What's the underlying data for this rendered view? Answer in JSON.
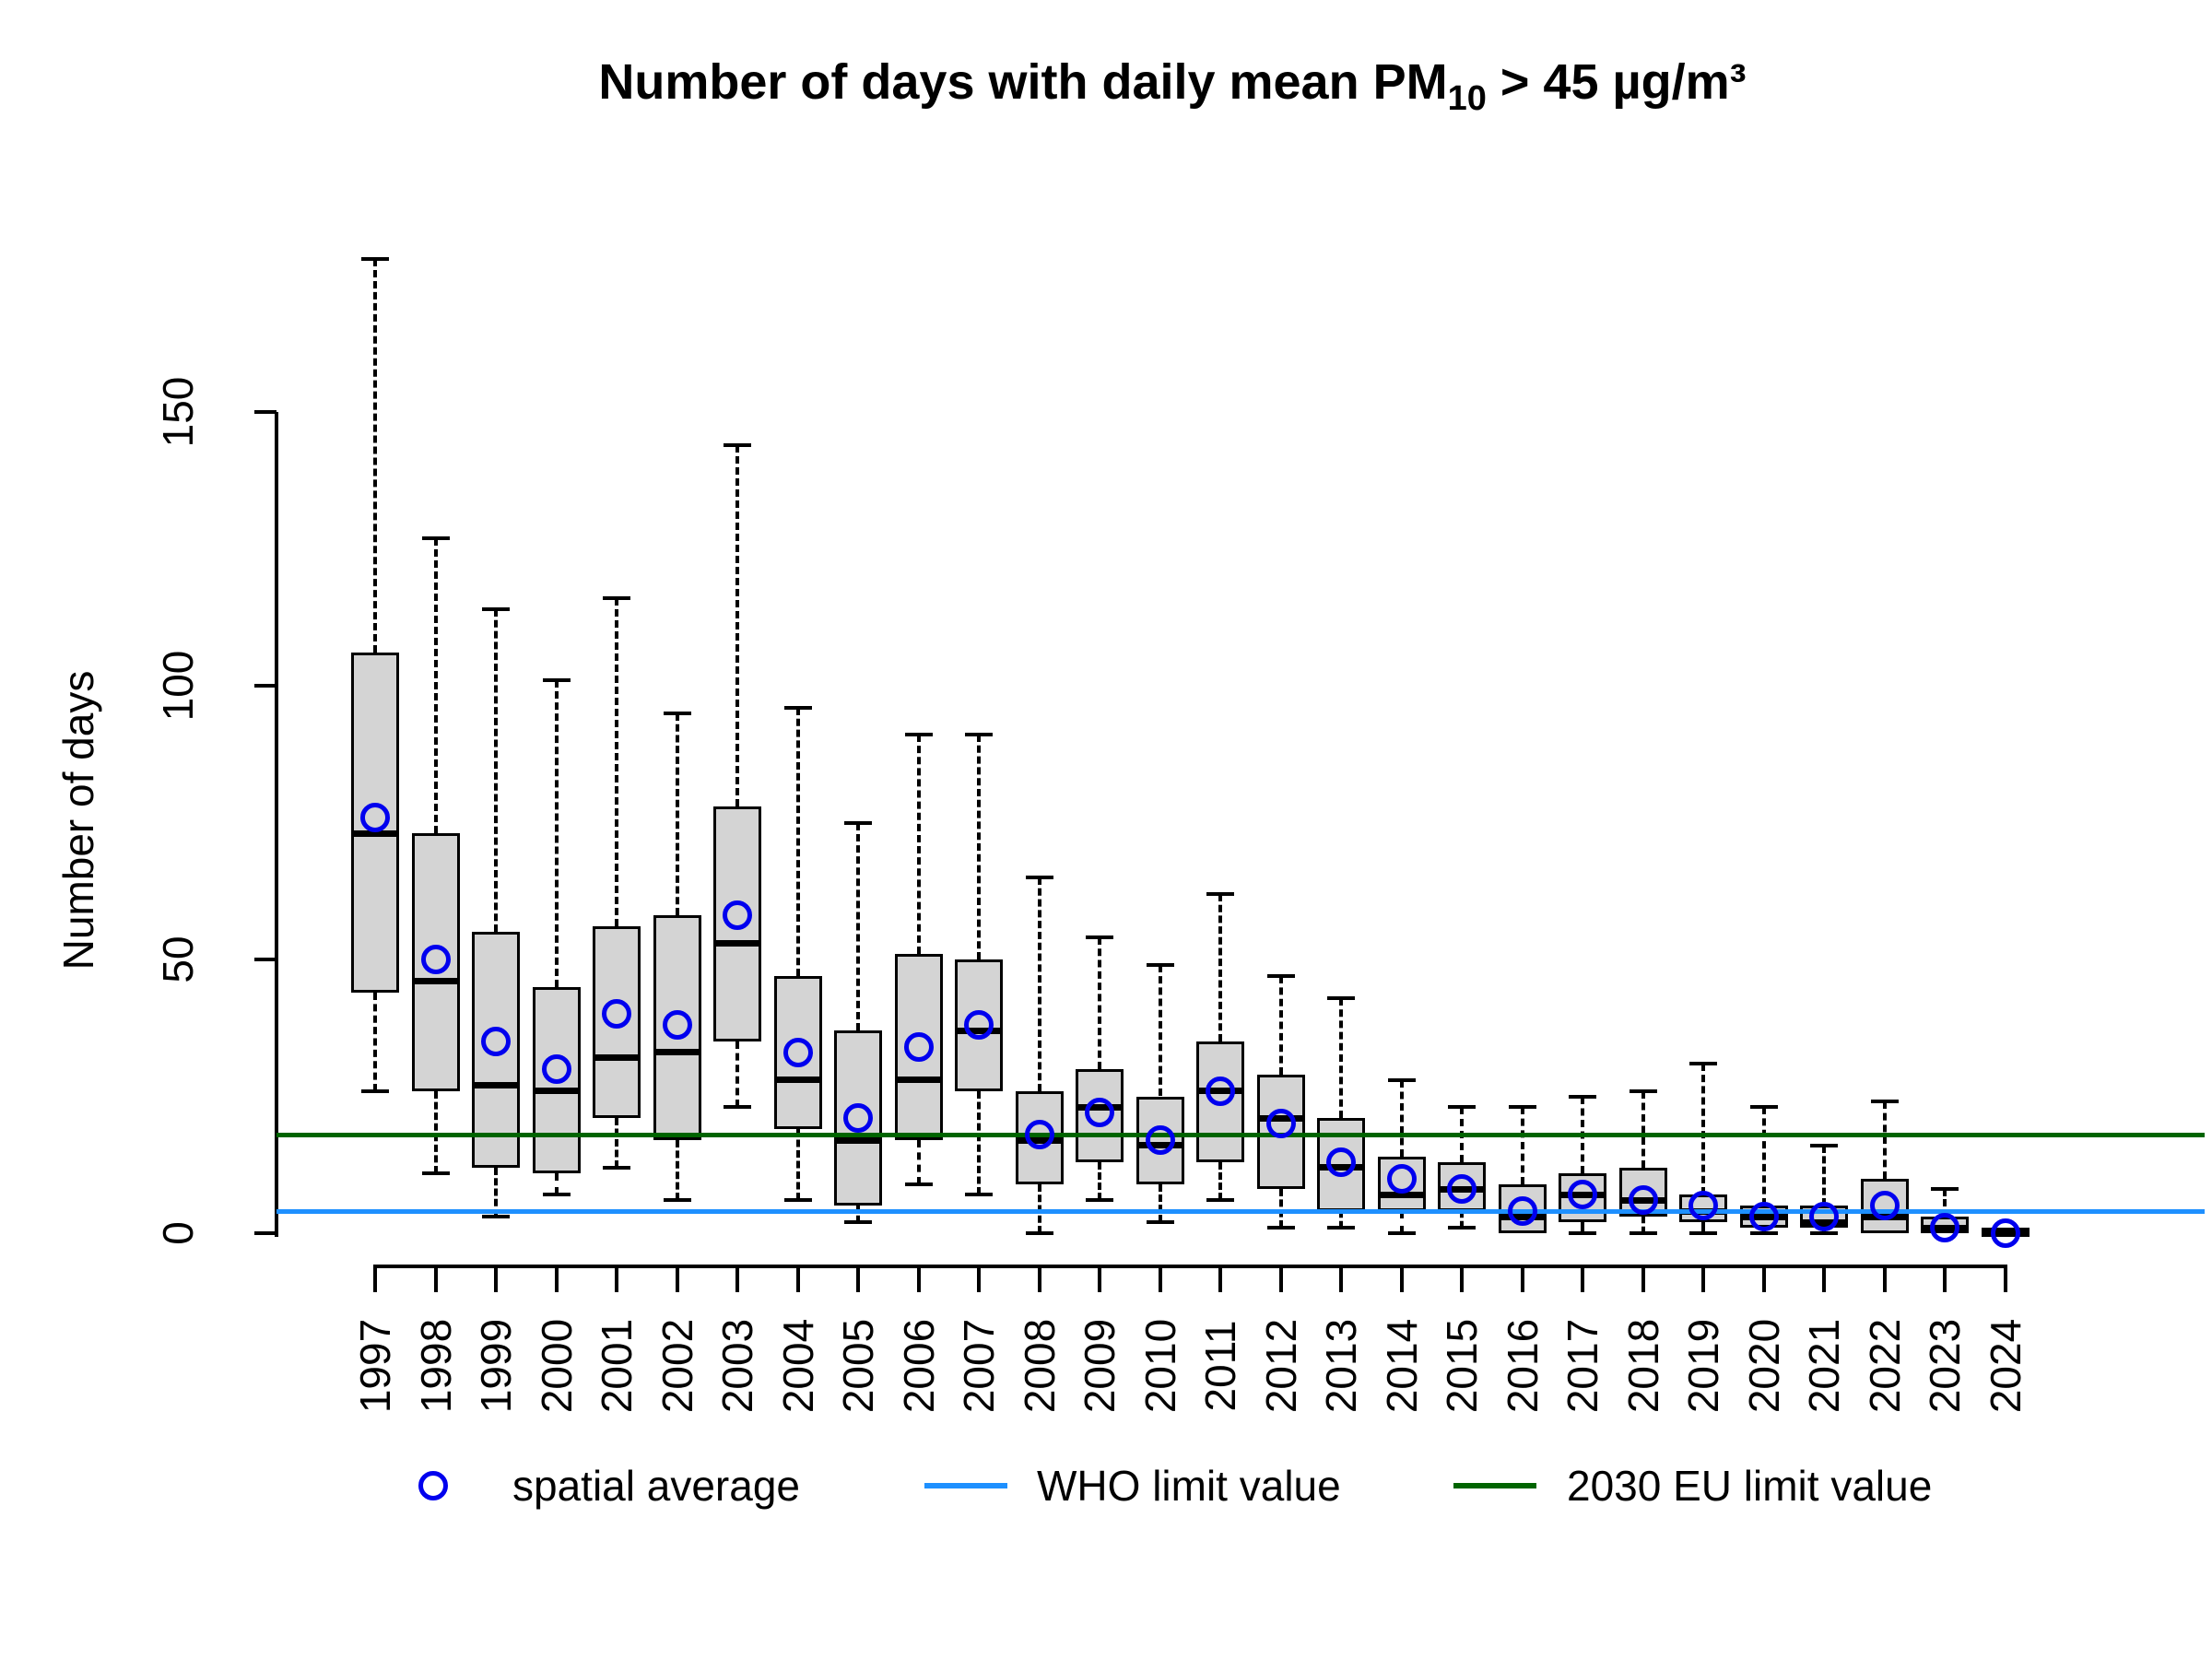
{
  "title": {
    "prefix": "Number of days with daily mean PM",
    "subscript": "10",
    "suffix": " > 45 µg/m³",
    "full_text": "Number of days with daily mean PM10 > 45 µg/m³"
  },
  "y_axis": {
    "label": "Number of days",
    "tick_labels": [
      "0",
      "50",
      "100",
      "150"
    ]
  },
  "legend": {
    "items": [
      {
        "symbol": "circle",
        "label": "spatial average",
        "color": "#0000ee"
      },
      {
        "symbol": "line",
        "label": "WHO limit value",
        "color": "#1e90ff"
      },
      {
        "symbol": "line",
        "label": "2030 EU limit value",
        "color": "#006400"
      }
    ]
  },
  "chart_data": {
    "type": "boxplot",
    "title": "Number of days with daily mean PM10 > 45 µg/m³",
    "xlabel": "",
    "ylabel": "Number of days",
    "ylim": [
      0,
      180
    ],
    "yticks": [
      0,
      50,
      100,
      150
    ],
    "grid": false,
    "legend_position": "bottom",
    "box_fill_color": "#d4d4d4",
    "mean_point_color": "#0000ee",
    "categories": [
      1997,
      1998,
      1999,
      2000,
      2001,
      2002,
      2003,
      2004,
      2005,
      2006,
      2007,
      2008,
      2009,
      2010,
      2011,
      2012,
      2013,
      2014,
      2015,
      2016,
      2017,
      2018,
      2019,
      2020,
      2021,
      2022,
      2023,
      2024
    ],
    "boxes": [
      {
        "year": 1997,
        "whisker_low": 26,
        "q1": 44,
        "median": 73,
        "q3": 106,
        "whisker_high": 178,
        "mean": 76
      },
      {
        "year": 1998,
        "whisker_low": 11,
        "q1": 26,
        "median": 46,
        "q3": 73,
        "whisker_high": 127,
        "mean": 50
      },
      {
        "year": 1999,
        "whisker_low": 3,
        "q1": 12,
        "median": 27,
        "q3": 55,
        "whisker_high": 114,
        "mean": 35
      },
      {
        "year": 2000,
        "whisker_low": 7,
        "q1": 11,
        "median": 26,
        "q3": 45,
        "whisker_high": 101,
        "mean": 30
      },
      {
        "year": 2001,
        "whisker_low": 12,
        "q1": 21,
        "median": 32,
        "q3": 56,
        "whisker_high": 116,
        "mean": 40
      },
      {
        "year": 2002,
        "whisker_low": 6,
        "q1": 17,
        "median": 33,
        "q3": 58,
        "whisker_high": 95,
        "mean": 38
      },
      {
        "year": 2003,
        "whisker_low": 23,
        "q1": 35,
        "median": 53,
        "q3": 78,
        "whisker_high": 144,
        "mean": 58
      },
      {
        "year": 2004,
        "whisker_low": 6,
        "q1": 19,
        "median": 28,
        "q3": 47,
        "whisker_high": 96,
        "mean": 33
      },
      {
        "year": 2005,
        "whisker_low": 2,
        "q1": 5,
        "median": 17,
        "q3": 37,
        "whisker_high": 75,
        "mean": 21
      },
      {
        "year": 2006,
        "whisker_low": 9,
        "q1": 17,
        "median": 28,
        "q3": 51,
        "whisker_high": 91,
        "mean": 34
      },
      {
        "year": 2007,
        "whisker_low": 7,
        "q1": 26,
        "median": 37,
        "q3": 50,
        "whisker_high": 91,
        "mean": 38
      },
      {
        "year": 2008,
        "whisker_low": 0,
        "q1": 9,
        "median": 17,
        "q3": 26,
        "whisker_high": 65,
        "mean": 18
      },
      {
        "year": 2009,
        "whisker_low": 6,
        "q1": 13,
        "median": 23,
        "q3": 30,
        "whisker_high": 54,
        "mean": 22
      },
      {
        "year": 2010,
        "whisker_low": 2,
        "q1": 9,
        "median": 16,
        "q3": 25,
        "whisker_high": 49,
        "mean": 17
      },
      {
        "year": 2011,
        "whisker_low": 6,
        "q1": 13,
        "median": 26,
        "q3": 35,
        "whisker_high": 62,
        "mean": 26
      },
      {
        "year": 2012,
        "whisker_low": 1,
        "q1": 8,
        "median": 21,
        "q3": 29,
        "whisker_high": 47,
        "mean": 20
      },
      {
        "year": 2013,
        "whisker_low": 1,
        "q1": 4,
        "median": 12,
        "q3": 21,
        "whisker_high": 43,
        "mean": 13
      },
      {
        "year": 2014,
        "whisker_low": 0,
        "q1": 4,
        "median": 7,
        "q3": 14,
        "whisker_high": 28,
        "mean": 10
      },
      {
        "year": 2015,
        "whisker_low": 1,
        "q1": 4,
        "median": 8,
        "q3": 13,
        "whisker_high": 23,
        "mean": 8
      },
      {
        "year": 2016,
        "whisker_low": 0,
        "q1": 0,
        "median": 3,
        "q3": 9,
        "whisker_high": 23,
        "mean": 4
      },
      {
        "year": 2017,
        "whisker_low": 0,
        "q1": 2,
        "median": 7,
        "q3": 11,
        "whisker_high": 25,
        "mean": 7
      },
      {
        "year": 2018,
        "whisker_low": 0,
        "q1": 3,
        "median": 6,
        "q3": 12,
        "whisker_high": 26,
        "mean": 6
      },
      {
        "year": 2019,
        "whisker_low": 0,
        "q1": 2,
        "median": 4,
        "q3": 7,
        "whisker_high": 31,
        "mean": 5
      },
      {
        "year": 2020,
        "whisker_low": 0,
        "q1": 1,
        "median": 3,
        "q3": 5,
        "whisker_high": 23,
        "mean": 3
      },
      {
        "year": 2021,
        "whisker_low": 0,
        "q1": 1,
        "median": 2,
        "q3": 5,
        "whisker_high": 16,
        "mean": 3
      },
      {
        "year": 2022,
        "whisker_low": 0,
        "q1": 0,
        "median": 3,
        "q3": 10,
        "whisker_high": 24,
        "mean": 5
      },
      {
        "year": 2023,
        "whisker_low": 0,
        "q1": 0,
        "median": 1,
        "q3": 3,
        "whisker_high": 8,
        "mean": 1
      },
      {
        "year": 2024,
        "whisker_low": 0,
        "q1": 0,
        "median": 0,
        "q3": 1,
        "whisker_high": 1,
        "mean": 0
      }
    ],
    "reference_lines": [
      {
        "name": "WHO limit value",
        "value": 4,
        "color": "#1e90ff"
      },
      {
        "name": "2030 EU limit value",
        "value": 18,
        "color": "#006400"
      }
    ],
    "series_legend": [
      "spatial average",
      "WHO limit value",
      "2030 EU limit value"
    ]
  }
}
